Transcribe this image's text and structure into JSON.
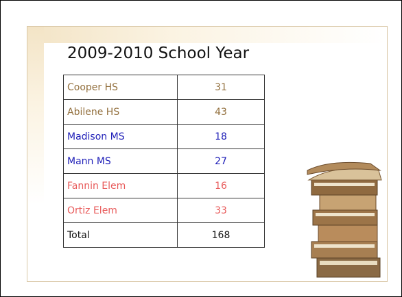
{
  "title": "2009-2010 School Year",
  "table": {
    "rows": [
      [
        "Cooper HS",
        31
      ],
      [
        "Abilene HS",
        43
      ],
      [
        "Madison MS",
        18
      ],
      [
        "Mann MS",
        27
      ],
      [
        "Fannin Elem",
        16
      ],
      [
        "Ortiz Elem",
        33
      ],
      [
        "Total",
        168
      ]
    ]
  }
}
